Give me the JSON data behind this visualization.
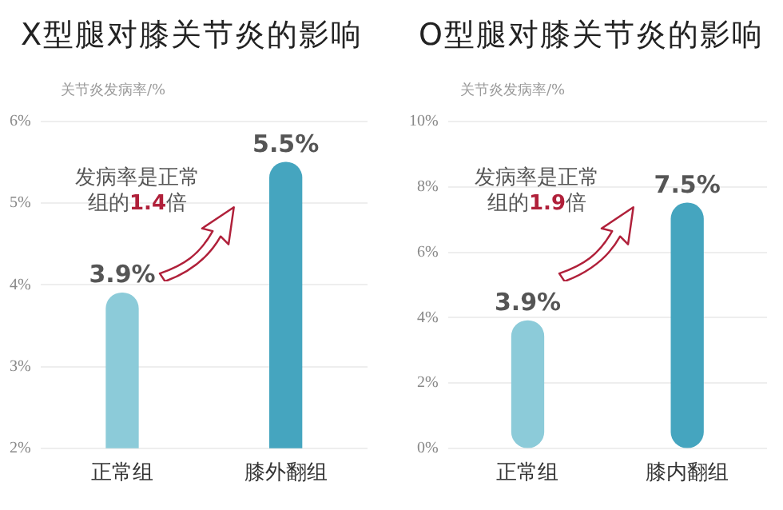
{
  "chart_data": [
    {
      "type": "bar",
      "title": "X型腿对膝关节炎的影响",
      "ylabel": "关节炎发病率/%",
      "categories": [
        "正常组",
        "膝外翻组"
      ],
      "values": [
        3.9,
        5.5
      ],
      "colors": [
        "#8ccbd9",
        "#45a5bf"
      ],
      "value_labels": [
        "3.9%",
        "5.5%"
      ],
      "ylim": [
        2,
        6
      ],
      "yticks": [
        {
          "value": 2,
          "label": "2%"
        },
        {
          "value": 3,
          "label": "3%"
        },
        {
          "value": 4,
          "label": "4%"
        },
        {
          "value": 5,
          "label": "5%"
        },
        {
          "value": 6,
          "label": "6%"
        }
      ],
      "grid": "y",
      "annotations": [
        "发病率是正常组的1.4倍"
      ]
    },
    {
      "type": "bar",
      "title": "O型腿对膝关节炎的影响",
      "ylabel": "关节炎发病率/%",
      "categories": [
        "正常组",
        "膝内翻组"
      ],
      "values": [
        3.9,
        7.5
      ],
      "colors": [
        "#8ccbd9",
        "#45a5bf"
      ],
      "value_labels": [
        "3.9%",
        "7.5%"
      ],
      "ylim": [
        0,
        10
      ],
      "yticks": [
        {
          "value": 0,
          "label": "0%"
        },
        {
          "value": 2,
          "label": "2%"
        },
        {
          "value": 4,
          "label": "4%"
        },
        {
          "value": 6,
          "label": "6%"
        },
        {
          "value": 8,
          "label": "8%"
        },
        {
          "value": 10,
          "label": "10%"
        }
      ],
      "grid": "y",
      "annotations": [
        "发病率是正常组的1.9倍"
      ]
    }
  ]
}
